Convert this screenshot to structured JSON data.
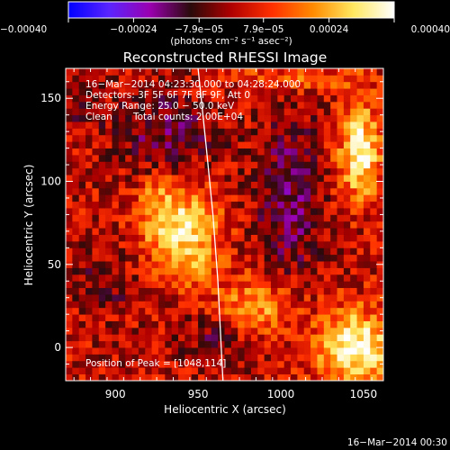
{
  "chart_data": {
    "type": "heatmap",
    "title": "Reconstructed RHESSI Image",
    "xlabel": "Heliocentric X (arcsec)",
    "ylabel": "Heliocentric Y (arcsec)",
    "xlim": [
      870,
      1062
    ],
    "ylim": [
      -20,
      168
    ],
    "x_ticks": [
      900,
      950,
      1000,
      1050
    ],
    "y_ticks": [
      0,
      50,
      100,
      150
    ],
    "colorbar": {
      "min": -0.0004,
      "max": 0.0004,
      "tick_values": [
        -0.0004,
        -0.00024,
        -7.9e-05,
        7.9e-05,
        0.00024,
        0.0004
      ],
      "tick_labels": [
        "−0.00040",
        "−0.00024",
        "−7.9e−05",
        "7.9e−05",
        "0.00024",
        "0.00040"
      ],
      "units": "(photons cm⁻² s⁻¹ asec⁻²)",
      "colors": [
        "#0000ff",
        "#5a24ff",
        "#9a00b0",
        "#2a0a0a",
        "#b00000",
        "#ff3000",
        "#ff8a00",
        "#ffe860",
        "#ffffff"
      ]
    },
    "annotations": {
      "time_range": "16−Mar−2014 04:23:30.000 to 04:28:24.000",
      "detectors": "Detectors: 3F 5F 6F 7F 8F 9F, Att 0",
      "energy_range": "Energy Range: 25.0 − 50.0 keV",
      "algorithm": "Clean",
      "total_counts": "Total counts: 2.00E+04",
      "peak": "Position of Peak = [1048,114]"
    },
    "peak_position": [
      1048,
      114
    ],
    "limb_curve": [
      [
        950,
        168
      ],
      [
        955,
        120
      ],
      [
        959,
        80
      ],
      [
        962,
        40
      ],
      [
        964,
        0
      ],
      [
        965,
        -20
      ]
    ],
    "sources": [
      {
        "x": 940,
        "y": 70,
        "sx": 16,
        "sy": 18,
        "amp": 0.0003
      },
      {
        "x": 950,
        "y": 48,
        "sx": 8,
        "sy": 7,
        "amp": 0.00012
      },
      {
        "x": 925,
        "y": 88,
        "sx": 10,
        "sy": 10,
        "amp": 0.0001
      },
      {
        "x": 1048,
        "y": 118,
        "sx": 9,
        "sy": 20,
        "amp": 0.00034
      },
      {
        "x": 1045,
        "y": 0,
        "sx": 16,
        "sy": 16,
        "amp": 0.00036
      },
      {
        "x": 985,
        "y": 25,
        "sx": 16,
        "sy": 13,
        "amp": 0.00021
      },
      {
        "x": 1015,
        "y": 162,
        "sx": 30,
        "sy": 6,
        "amp": 0.00012
      },
      {
        "x": 895,
        "y": 40,
        "sx": 12,
        "sy": 14,
        "amp": -9e-05
      },
      {
        "x": 930,
        "y": 130,
        "sx": 22,
        "sy": 16,
        "amp": -0.00013
      },
      {
        "x": 1005,
        "y": 90,
        "sx": 14,
        "sy": 35,
        "amp": -0.00015
      },
      {
        "x": 880,
        "y": 150,
        "sx": 10,
        "sy": 12,
        "amp": -8e-05
      },
      {
        "x": 960,
        "y": 5,
        "sx": 14,
        "sy": 10,
        "amp": -0.00011
      }
    ]
  },
  "footer": {
    "timestamp": "16−Mar−2014 00:30"
  }
}
